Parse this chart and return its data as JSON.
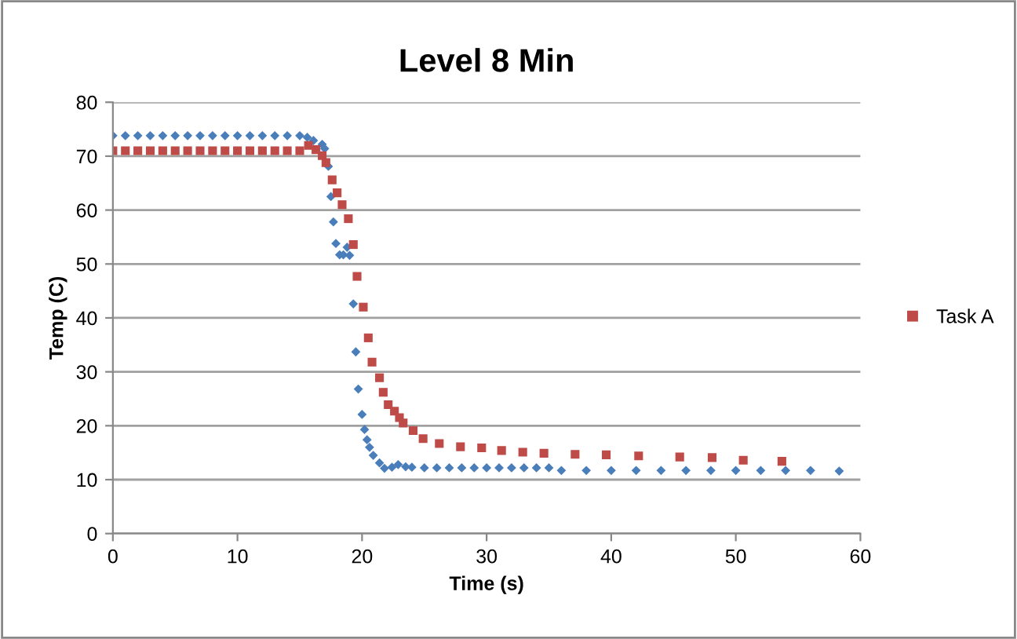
{
  "chart_data": {
    "type": "scatter",
    "title": "Level 8 Min",
    "xlabel": "Time (s)",
    "ylabel": "Temp (C)",
    "xlim": [
      0,
      60
    ],
    "xticks": [
      0,
      10,
      20,
      30,
      40,
      50,
      60
    ],
    "ylim": [
      0,
      80
    ],
    "yticks": [
      0,
      10,
      20,
      30,
      40,
      50,
      60,
      70,
      80
    ],
    "grid": "y",
    "legend": "right",
    "series": [
      {
        "color": "#4a7ebb",
        "marker": "diamond",
        "x": [
          0,
          1,
          2,
          3,
          4,
          5,
          6,
          7,
          8,
          9,
          10,
          11,
          12,
          13,
          14,
          15,
          15.6,
          16.1,
          16.8,
          17.0,
          17.3,
          17.5,
          17.7,
          17.9,
          18.2,
          18.5,
          18.8,
          19.0,
          19.3,
          19.5,
          19.7,
          20.0,
          20.2,
          20.4,
          20.6,
          20.9,
          21.4,
          21.8,
          22.4,
          22.9,
          23.5,
          24,
          25,
          26,
          27,
          28,
          29,
          30,
          31,
          32,
          33,
          34,
          35,
          36,
          38,
          40,
          42,
          44,
          46,
          48,
          50,
          52,
          54,
          56,
          58.3
        ],
        "values": [
          73.8,
          73.8,
          73.8,
          73.8,
          73.8,
          73.8,
          73.8,
          73.8,
          73.8,
          73.8,
          73.8,
          73.8,
          73.8,
          73.8,
          73.8,
          73.8,
          73.5,
          72.9,
          72.2,
          71.4,
          68.1,
          62.5,
          57.8,
          53.8,
          51.7,
          51.7,
          53.1,
          51.6,
          42.6,
          33.7,
          26.8,
          22.1,
          19.3,
          17.4,
          16.0,
          14.5,
          13.1,
          12.1,
          12.3,
          12.8,
          12.4,
          12.3,
          12.2,
          12.2,
          12.2,
          12.2,
          12.2,
          12.2,
          12.2,
          12.2,
          12.2,
          12.2,
          12.2,
          11.7,
          11.7,
          11.7,
          11.7,
          11.7,
          11.7,
          11.7,
          11.7,
          11.7,
          11.7,
          11.7,
          11.6
        ]
      },
      {
        "name": "Task A",
        "color": "#be4b48",
        "marker": "square",
        "x": [
          0,
          1,
          2,
          3,
          4,
          5,
          6,
          7,
          8,
          9,
          10,
          11,
          12,
          13,
          14,
          15,
          15.7,
          16.3,
          16.8,
          17.1,
          17.6,
          18.0,
          18.4,
          18.9,
          19.3,
          19.6,
          20.1,
          20.5,
          20.8,
          21.4,
          21.7,
          22.1,
          22.6,
          23.0,
          23.3,
          24.1,
          24.9,
          26.2,
          27.9,
          29.6,
          31.2,
          32.9,
          34.6,
          37.1,
          39.6,
          42.2,
          45.5,
          48.1,
          50.6,
          53.7
        ],
        "values": [
          71.0,
          71.0,
          71.0,
          71.0,
          71.0,
          71.0,
          71.0,
          71.0,
          71.0,
          71.0,
          71.0,
          71.0,
          71.0,
          71.0,
          71.0,
          71.0,
          72.0,
          71.2,
          70.1,
          68.8,
          65.6,
          63.2,
          61.0,
          58.4,
          53.6,
          47.7,
          42.0,
          36.3,
          31.8,
          28.9,
          26.2,
          23.9,
          22.7,
          21.5,
          20.5,
          19.1,
          17.6,
          16.7,
          16.1,
          15.9,
          15.4,
          15.1,
          14.9,
          14.7,
          14.6,
          14.4,
          14.2,
          14.1,
          13.6,
          13.4
        ]
      }
    ]
  }
}
